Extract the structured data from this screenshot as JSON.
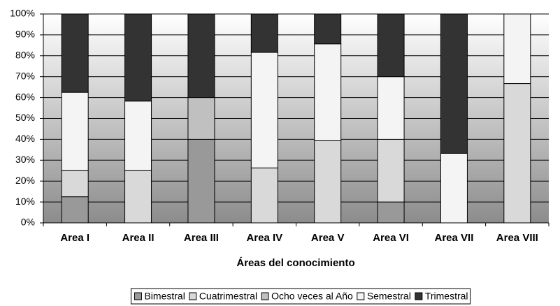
{
  "chart_data": {
    "type": "stacked_bar_100",
    "xlabel": "Áreas del conocimiento",
    "categories": [
      "Area I",
      "Area II",
      "Area III",
      "Area IV",
      "Area V",
      "Area VI",
      "Area VII",
      "Area VIII"
    ],
    "series": [
      {
        "name": "Bimestral",
        "color": "#999999",
        "values": [
          12.5,
          0,
          40,
          0,
          0,
          10,
          0,
          0
        ]
      },
      {
        "name": "Cuatrimestral",
        "color": "#d9d9d9",
        "values": [
          12.5,
          25,
          0,
          26.3,
          39.3,
          30,
          0,
          66.7
        ]
      },
      {
        "name": "Ocho veces al Año",
        "color": "#c0c0c0",
        "values": [
          0,
          0,
          20,
          0,
          0,
          0,
          0,
          0
        ]
      },
      {
        "name": "Semestral",
        "color": "#f4f4f4",
        "values": [
          37.5,
          33.3,
          0,
          55.3,
          46.4,
          30,
          33.3,
          33.3
        ]
      },
      {
        "name": "Trimestral",
        "color": "#333333",
        "values": [
          37.5,
          41.7,
          40,
          18.4,
          14.3,
          30,
          66.7,
          0
        ]
      }
    ],
    "ylim": [
      0,
      100
    ],
    "yticks": [
      {
        "value": 0,
        "label": "0%"
      },
      {
        "value": 10,
        "label": "10%"
      },
      {
        "value": 20,
        "label": "20%"
      },
      {
        "value": 30,
        "label": "30%"
      },
      {
        "value": 40,
        "label": "40%"
      },
      {
        "value": 50,
        "label": "50%"
      },
      {
        "value": 60,
        "label": "60%"
      },
      {
        "value": 70,
        "label": "70%"
      },
      {
        "value": 80,
        "label": "80%"
      },
      {
        "value": 90,
        "label": "90%"
      },
      {
        "value": 100,
        "label": "100%"
      }
    ],
    "grid": true,
    "legend": "bottom"
  }
}
